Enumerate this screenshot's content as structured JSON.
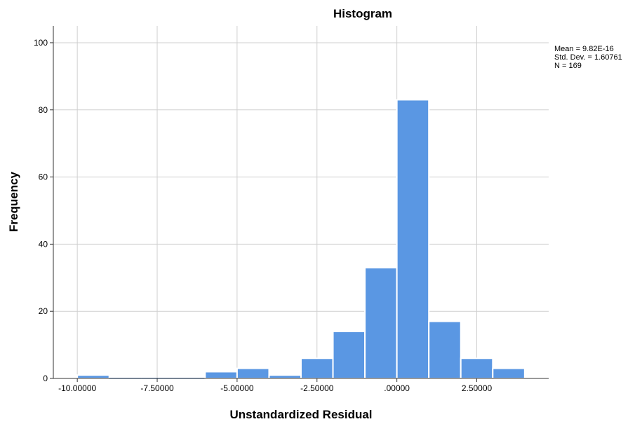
{
  "chart_data": {
    "type": "bar",
    "title": "Histogram",
    "xlabel": "Unstandardized Residual",
    "ylabel": "Frequency",
    "bin_width": 1.0,
    "bins": [
      {
        "x_start": -10.0,
        "value": 1
      },
      {
        "x_start": -9.0,
        "value": 0
      },
      {
        "x_start": -8.0,
        "value": 0
      },
      {
        "x_start": -7.0,
        "value": 0
      },
      {
        "x_start": -6.0,
        "value": 2
      },
      {
        "x_start": -5.0,
        "value": 3
      },
      {
        "x_start": -4.0,
        "value": 1
      },
      {
        "x_start": -3.0,
        "value": 6
      },
      {
        "x_start": -2.0,
        "value": 14
      },
      {
        "x_start": -1.0,
        "value": 33
      },
      {
        "x_start": 0.0,
        "value": 83
      },
      {
        "x_start": 1.0,
        "value": 17
      },
      {
        "x_start": 2.0,
        "value": 6
      },
      {
        "x_start": 3.0,
        "value": 3
      }
    ],
    "xlim": [
      -10.75,
      4.75
    ],
    "ylim": [
      0,
      105
    ],
    "x_ticks": [
      {
        "value": -10.0,
        "label": "-10.00000"
      },
      {
        "value": -7.5,
        "label": "-7.50000"
      },
      {
        "value": -5.0,
        "label": "-5.00000"
      },
      {
        "value": -2.5,
        "label": "-2.50000"
      },
      {
        "value": 0.0,
        "label": ".00000"
      },
      {
        "value": 2.5,
        "label": "2.50000"
      }
    ],
    "y_ticks": [
      0,
      20,
      40,
      60,
      80,
      100
    ],
    "grid": true,
    "bar_color": "#5a97e3",
    "bar_edge_color": "#ffffff",
    "axis_color": "#333333",
    "grid_color": "#cfcfcf",
    "stats": {
      "mean": "Mean = 9.82E-16",
      "std_dev": "Std. Dev. = 1.60761",
      "n": "N = 169"
    }
  }
}
